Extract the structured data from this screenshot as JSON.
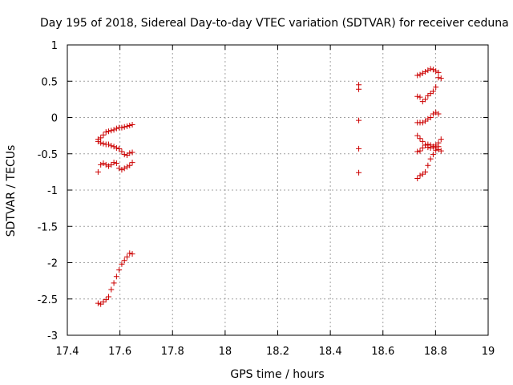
{
  "chart_data": {
    "type": "scatter",
    "title": "Day 195 of 2018, Sidereal Day-to-day VTEC variation (SDTVAR) for receiver ceduna",
    "xlabel": "GPS time / hours",
    "ylabel": "SDTVAR / TECUs",
    "xlim": [
      17.4,
      19.0
    ],
    "ylim": [
      -3,
      1
    ],
    "xticks": [
      17.4,
      17.6,
      17.8,
      18.0,
      18.2,
      18.4,
      18.6,
      18.8,
      19.0
    ],
    "xtick_labels": [
      "17.4",
      "17.6",
      "17.8",
      "18",
      "18.2",
      "18.4",
      "18.6",
      "18.8",
      "19"
    ],
    "yticks": [
      1,
      0.5,
      0,
      -0.5,
      -1,
      -1.5,
      -2,
      -2.5,
      -3
    ],
    "ytick_labels": [
      "1",
      "0.5",
      "0",
      "-0.5",
      "-1",
      "-1.5",
      "-2",
      "-2.5",
      "-3"
    ],
    "grid": true,
    "marker": "+",
    "color": "#cc0000",
    "series": [
      {
        "name": "SDTVAR",
        "points": [
          [
            17.517,
            -0.3
          ],
          [
            17.527,
            -0.28
          ],
          [
            17.537,
            -0.24
          ],
          [
            17.547,
            -0.2
          ],
          [
            17.557,
            -0.19
          ],
          [
            17.567,
            -0.18
          ],
          [
            17.577,
            -0.17
          ],
          [
            17.587,
            -0.15
          ],
          [
            17.597,
            -0.14
          ],
          [
            17.607,
            -0.14
          ],
          [
            17.617,
            -0.13
          ],
          [
            17.627,
            -0.12
          ],
          [
            17.637,
            -0.11
          ],
          [
            17.647,
            -0.1
          ],
          [
            17.517,
            -0.33
          ],
          [
            17.527,
            -0.35
          ],
          [
            17.537,
            -0.36
          ],
          [
            17.547,
            -0.37
          ],
          [
            17.557,
            -0.37
          ],
          [
            17.567,
            -0.39
          ],
          [
            17.577,
            -0.4
          ],
          [
            17.587,
            -0.42
          ],
          [
            17.597,
            -0.43
          ],
          [
            17.607,
            -0.47
          ],
          [
            17.617,
            -0.51
          ],
          [
            17.627,
            -0.52
          ],
          [
            17.637,
            -0.49
          ],
          [
            17.647,
            -0.48
          ],
          [
            17.517,
            -0.75
          ],
          [
            17.527,
            -0.65
          ],
          [
            17.537,
            -0.63
          ],
          [
            17.547,
            -0.65
          ],
          [
            17.557,
            -0.67
          ],
          [
            17.567,
            -0.65
          ],
          [
            17.577,
            -0.62
          ],
          [
            17.587,
            -0.63
          ],
          [
            17.597,
            -0.7
          ],
          [
            17.607,
            -0.72
          ],
          [
            17.617,
            -0.7
          ],
          [
            17.627,
            -0.68
          ],
          [
            17.637,
            -0.66
          ],
          [
            17.647,
            -0.62
          ],
          [
            17.517,
            -2.56
          ],
          [
            17.527,
            -2.57
          ],
          [
            17.537,
            -2.54
          ],
          [
            17.547,
            -2.51
          ],
          [
            17.557,
            -2.47
          ],
          [
            17.567,
            -2.37
          ],
          [
            17.577,
            -2.28
          ],
          [
            17.587,
            -2.19
          ],
          [
            17.597,
            -2.1
          ],
          [
            17.607,
            -2.02
          ],
          [
            17.617,
            -1.97
          ],
          [
            17.627,
            -1.92
          ],
          [
            17.637,
            -1.87
          ],
          [
            17.647,
            -1.88
          ],
          [
            18.508,
            0.45
          ],
          [
            18.508,
            0.39
          ],
          [
            18.508,
            -0.04
          ],
          [
            18.508,
            -0.43
          ],
          [
            18.508,
            -0.76
          ],
          [
            18.731,
            0.58
          ],
          [
            18.741,
            0.59
          ],
          [
            18.751,
            0.61
          ],
          [
            18.761,
            0.63
          ],
          [
            18.771,
            0.65
          ],
          [
            18.781,
            0.67
          ],
          [
            18.791,
            0.66
          ],
          [
            18.801,
            0.64
          ],
          [
            18.811,
            0.62
          ],
          [
            18.821,
            0.54
          ],
          [
            18.731,
            0.29
          ],
          [
            18.741,
            0.28
          ],
          [
            18.751,
            0.22
          ],
          [
            18.761,
            0.25
          ],
          [
            18.771,
            0.3
          ],
          [
            18.781,
            0.33
          ],
          [
            18.791,
            0.36
          ],
          [
            18.801,
            0.42
          ],
          [
            18.811,
            0.55
          ],
          [
            18.731,
            -0.07
          ],
          [
            18.741,
            -0.07
          ],
          [
            18.751,
            -0.07
          ],
          [
            18.761,
            -0.05
          ],
          [
            18.771,
            -0.02
          ],
          [
            18.781,
            0.0
          ],
          [
            18.791,
            0.05
          ],
          [
            18.801,
            0.07
          ],
          [
            18.811,
            0.05
          ],
          [
            18.731,
            -0.25
          ],
          [
            18.741,
            -0.29
          ],
          [
            18.751,
            -0.33
          ],
          [
            18.761,
            -0.38
          ],
          [
            18.771,
            -0.41
          ],
          [
            18.781,
            -0.42
          ],
          [
            18.791,
            -0.4
          ],
          [
            18.801,
            -0.38
          ],
          [
            18.811,
            -0.35
          ],
          [
            18.821,
            -0.3
          ],
          [
            18.731,
            -0.47
          ],
          [
            18.741,
            -0.46
          ],
          [
            18.751,
            -0.42
          ],
          [
            18.761,
            -0.38
          ],
          [
            18.771,
            -0.37
          ],
          [
            18.781,
            -0.38
          ],
          [
            18.791,
            -0.4
          ],
          [
            18.801,
            -0.42
          ],
          [
            18.811,
            -0.44
          ],
          [
            18.821,
            -0.46
          ],
          [
            18.731,
            -0.84
          ],
          [
            18.741,
            -0.8
          ],
          [
            18.751,
            -0.78
          ],
          [
            18.761,
            -0.75
          ],
          [
            18.771,
            -0.66
          ],
          [
            18.781,
            -0.57
          ],
          [
            18.791,
            -0.51
          ],
          [
            18.801,
            -0.45
          ],
          [
            18.811,
            -0.4
          ]
        ]
      }
    ]
  }
}
